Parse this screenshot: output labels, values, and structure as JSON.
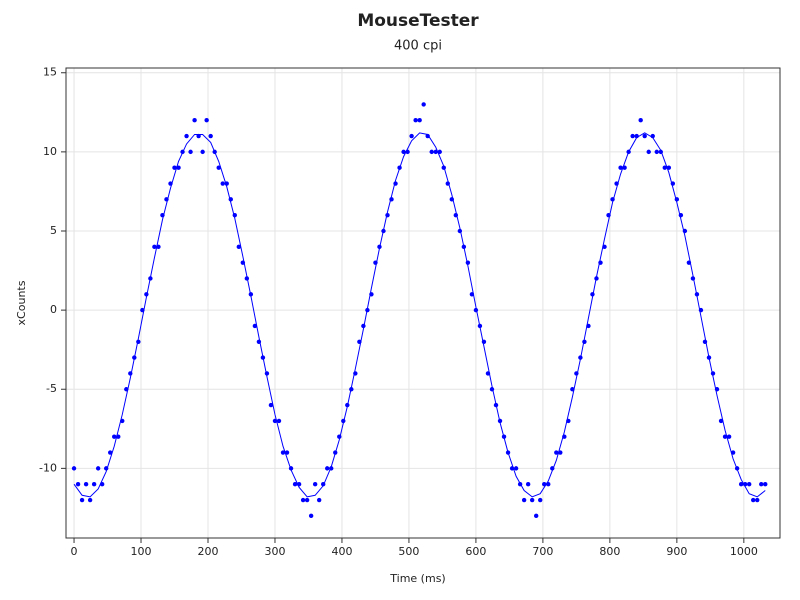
{
  "chart_data": {
    "type": "scatter",
    "title": "MouseTester",
    "subtitle": "400 cpi",
    "xlabel": "Time (ms)",
    "ylabel": "xCounts",
    "xlim": [
      -12,
      1054
    ],
    "ylim": [
      -14.4,
      15.3
    ],
    "xticks": [
      0,
      100,
      200,
      300,
      400,
      500,
      600,
      700,
      800,
      900,
      1000
    ],
    "yticks": [
      -10,
      -5,
      0,
      5,
      10,
      15
    ],
    "grid": true,
    "series": [
      {
        "kind": "points",
        "color": "#0000ff",
        "x": [
          0,
          6,
          12,
          18,
          24,
          30,
          36,
          42,
          48,
          54,
          60,
          66,
          72,
          78,
          84,
          90,
          96,
          102,
          108,
          114,
          120,
          126,
          132,
          138,
          144,
          150,
          156,
          162,
          168,
          174,
          180,
          186,
          192,
          198,
          204,
          210,
          216,
          222,
          228,
          234,
          240,
          246,
          252,
          258,
          264,
          270,
          276,
          282,
          288,
          294,
          300,
          306,
          312,
          318,
          324,
          330,
          336,
          342,
          348,
          354,
          360,
          366,
          372,
          378,
          384,
          390,
          396,
          402,
          408,
          414,
          420,
          426,
          432,
          438,
          444,
          450,
          456,
          462,
          468,
          474,
          480,
          486,
          492,
          498,
          504,
          510,
          516,
          522,
          528,
          534,
          540,
          546,
          552,
          558,
          564,
          570,
          576,
          582,
          588,
          594,
          600,
          606,
          612,
          618,
          624,
          630,
          636,
          642,
          648,
          654,
          660,
          666,
          672,
          678,
          684,
          690,
          696,
          702,
          708,
          714,
          720,
          726,
          732,
          738,
          744,
          750,
          756,
          762,
          768,
          774,
          780,
          786,
          792,
          798,
          804,
          810,
          816,
          822,
          828,
          834,
          840,
          846,
          852,
          858,
          864,
          870,
          876,
          882,
          888,
          894,
          900,
          906,
          912,
          918,
          924,
          930,
          936,
          942,
          948,
          954,
          960,
          966,
          972,
          978,
          984,
          990,
          996,
          1002,
          1008,
          1014,
          1020,
          1026,
          1032
        ],
        "values": [
          -10,
          -11,
          -12,
          -11,
          -12,
          -11,
          -10,
          -11,
          -10,
          -9,
          -8,
          -8,
          -7,
          -5,
          -4,
          -3,
          -2,
          0,
          1,
          2,
          4,
          4,
          6,
          7,
          8,
          9,
          9,
          10,
          11,
          10,
          12,
          11,
          10,
          12,
          11,
          10,
          9,
          8,
          8,
          7,
          6,
          4,
          3,
          2,
          1,
          -1,
          -2,
          -3,
          -4,
          -6,
          -7,
          -7,
          -9,
          -9,
          -10,
          -11,
          -11,
          -12,
          -12,
          -13,
          -11,
          -12,
          -11,
          -10,
          -10,
          -9,
          -8,
          -7,
          -6,
          -5,
          -4,
          -2,
          -1,
          0,
          1,
          3,
          4,
          5,
          6,
          7,
          8,
          9,
          10,
          10,
          11,
          12,
          12,
          13,
          11,
          10,
          10,
          10,
          9,
          8,
          7,
          6,
          5,
          4,
          3,
          1,
          0,
          -1,
          -2,
          -4,
          -5,
          -6,
          -7,
          -8,
          -9,
          -10,
          -10,
          -11,
          -12,
          -11,
          -12,
          -13,
          -12,
          -11,
          -11,
          -10,
          -9,
          -9,
          -8,
          -7,
          -5,
          -4,
          -3,
          -2,
          -1,
          1,
          2,
          3,
          4,
          6,
          7,
          8,
          9,
          9,
          10,
          11,
          11,
          12,
          11,
          10,
          11,
          10,
          10,
          9,
          9,
          8,
          7,
          6,
          5,
          3,
          2,
          1,
          0,
          -2,
          -3,
          -4,
          -5,
          -7,
          -8,
          -8,
          -9,
          -10,
          -11,
          -11,
          -11,
          -12,
          -12,
          -11,
          -11
        ]
      },
      {
        "kind": "line",
        "color": "#0000ff",
        "x": [
          0,
          12,
          24,
          36,
          48,
          60,
          72,
          84,
          96,
          108,
          120,
          132,
          144,
          156,
          168,
          180,
          192,
          204,
          216,
          228,
          240,
          252,
          264,
          276,
          288,
          300,
          312,
          324,
          336,
          348,
          360,
          372,
          384,
          396,
          408,
          420,
          432,
          444,
          456,
          468,
          480,
          492,
          504,
          516,
          528,
          540,
          552,
          564,
          576,
          588,
          600,
          612,
          624,
          636,
          648,
          660,
          672,
          684,
          696,
          708,
          720,
          732,
          744,
          756,
          768,
          780,
          792,
          804,
          816,
          828,
          840,
          852,
          864,
          876,
          888,
          900,
          912,
          924,
          936,
          948,
          960,
          972,
          984,
          996,
          1008,
          1020,
          1032
        ],
        "values": [
          -11.0,
          -11.7,
          -11.8,
          -11.3,
          -10.2,
          -8.6,
          -6.6,
          -4.3,
          -1.8,
          0.8,
          3.3,
          5.7,
          7.7,
          9.4,
          10.5,
          11.1,
          11.1,
          10.6,
          9.4,
          7.8,
          5.8,
          3.4,
          0.9,
          -1.7,
          -4.2,
          -6.6,
          -8.6,
          -10.1,
          -11.2,
          -11.8,
          -11.7,
          -11.1,
          -9.9,
          -8.2,
          -6.1,
          -3.7,
          -1.2,
          1.4,
          3.9,
          6.2,
          8.2,
          9.7,
          10.7,
          11.2,
          11.1,
          10.3,
          9.1,
          7.3,
          5.2,
          2.8,
          0.2,
          -2.3,
          -4.8,
          -7.1,
          -9.0,
          -10.5,
          -11.4,
          -11.8,
          -11.6,
          -10.8,
          -9.5,
          -7.7,
          -5.5,
          -3.1,
          -0.5,
          2.1,
          4.5,
          6.8,
          8.6,
          10.0,
          10.9,
          11.2,
          10.9,
          10.1,
          8.7,
          6.8,
          4.7,
          2.2,
          -0.4,
          -3.0,
          -5.4,
          -7.6,
          -9.4,
          -10.7,
          -11.6,
          -11.8,
          -11.4
        ]
      }
    ]
  }
}
